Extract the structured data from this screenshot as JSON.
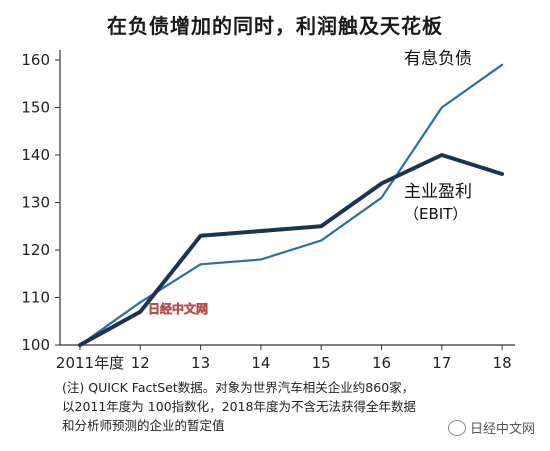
{
  "title": "在负债增加的同时，利润触及天花板",
  "chart_data": {
    "type": "line",
    "x": [
      "2011年度",
      "12",
      "13",
      "14",
      "15",
      "16",
      "17",
      "18"
    ],
    "ylim": [
      100,
      160
    ],
    "yticks": [
      100,
      110,
      120,
      130,
      140,
      150,
      160
    ],
    "grid": false,
    "series": [
      {
        "name": "有息负债",
        "color": "#2e6ea6",
        "values": [
          100,
          109,
          117,
          118,
          122,
          131,
          150,
          159
        ]
      },
      {
        "name": "主业盈利",
        "name_line2": "（EBIT）",
        "color": "#1c3452",
        "values": [
          100,
          107,
          123,
          124,
          125,
          134,
          140,
          136
        ]
      }
    ]
  },
  "watermark_chart": "日经中文网",
  "note": {
    "line1": "(注) QUICK FactSet数据。对象为世界汽车相关企业约860家，",
    "line2": "以2011年度为 100指数化，2018年度为不含无法获得全年数据",
    "line3": "和分析师预测的企业的暂定值"
  },
  "source_mark": "日经中文网"
}
